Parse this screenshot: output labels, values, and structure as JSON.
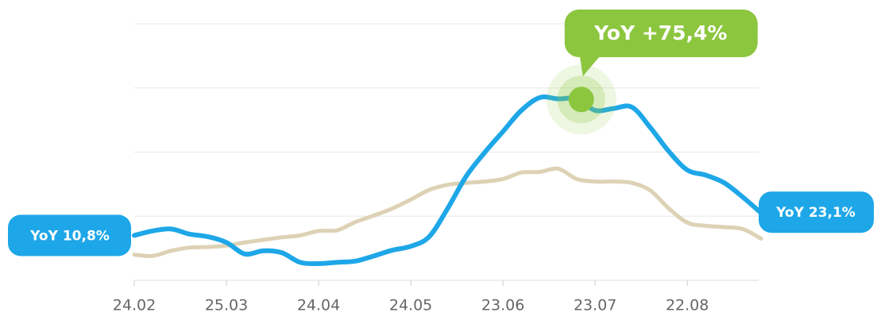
{
  "chart_data": {
    "type": "line",
    "x": [
      0,
      0.2,
      0.4,
      0.6,
      0.8,
      1.0,
      1.2,
      1.4,
      1.6,
      1.8,
      2.0,
      2.2,
      2.4,
      2.6,
      2.8,
      3.0,
      3.2,
      3.4,
      3.6,
      3.8,
      4.0,
      4.2,
      4.4,
      4.6,
      4.8,
      5.0,
      5.2,
      5.4,
      5.6,
      5.8,
      6.0,
      6.2,
      6.4,
      6.6,
      6.8
    ],
    "series": [
      {
        "color": "#1ea7e8",
        "values": [
          0.7,
          0.77,
          0.8,
          0.72,
          0.68,
          0.59,
          0.41,
          0.46,
          0.43,
          0.28,
          0.26,
          0.28,
          0.3,
          0.38,
          0.47,
          0.53,
          0.68,
          1.12,
          1.62,
          1.99,
          2.32,
          2.65,
          2.85,
          2.83,
          2.83,
          2.65,
          2.68,
          2.7,
          2.38,
          2.01,
          1.72,
          1.64,
          1.52,
          1.3,
          1.05
        ]
      },
      {
        "color": "#ddd2b5",
        "values": [
          0.4,
          0.38,
          0.46,
          0.51,
          0.52,
          0.54,
          0.59,
          0.63,
          0.67,
          0.7,
          0.77,
          0.78,
          0.91,
          1.01,
          1.12,
          1.26,
          1.41,
          1.49,
          1.52,
          1.54,
          1.58,
          1.68,
          1.69,
          1.74,
          1.58,
          1.54,
          1.54,
          1.52,
          1.4,
          1.12,
          0.9,
          0.85,
          0.83,
          0.8,
          0.65
        ]
      }
    ],
    "xlim": [
      0,
      6.8
    ],
    "xticks": [
      {
        "value": 0,
        "label": "24.02"
      },
      {
        "value": 1,
        "label": "25.03"
      },
      {
        "value": 2,
        "label": "24.04"
      },
      {
        "value": 3,
        "label": "24.05"
      },
      {
        "value": 4,
        "label": "23.06"
      },
      {
        "value": 5,
        "label": "23.07"
      },
      {
        "value": 6,
        "label": "22.08"
      }
    ],
    "ylim": [
      0,
      4
    ],
    "yticks": [
      0,
      1,
      2,
      3,
      4
    ],
    "grid": true,
    "annotations": {
      "start": "YoY 10,8%",
      "end": "YoY 23,1%",
      "peak": {
        "text": "YoY +75,4%",
        "x": 4.85,
        "y": 2.82,
        "color": "#8cc63f"
      }
    }
  }
}
